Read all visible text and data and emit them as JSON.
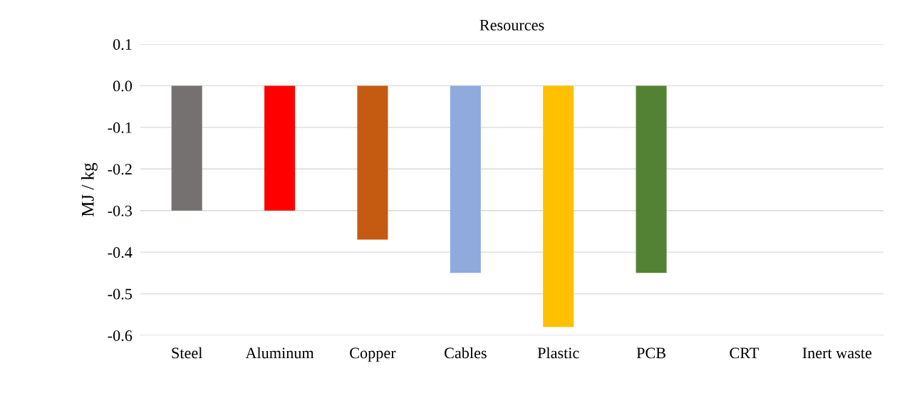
{
  "chart_data": {
    "type": "bar",
    "title": "Resources",
    "ylabel": "MJ / kg",
    "categories": [
      "Steel",
      "Aluminum",
      "Copper",
      "Cables",
      "Plastic",
      "PCB",
      "CRT",
      "Inert waste"
    ],
    "values": [
      -0.3,
      -0.3,
      -0.37,
      -0.45,
      -0.58,
      -0.45,
      0,
      0
    ],
    "colors": [
      "#767171",
      "#ff0000",
      "#c55a11",
      "#8faadc",
      "#ffc000",
      "#548235",
      "#a5a5a5",
      "#4472c4"
    ],
    "ylim": [
      -0.6,
      0.1
    ],
    "yticks": [
      {
        "value": -0.6,
        "label": "-0.6"
      },
      {
        "value": -0.5,
        "label": "-0.5"
      },
      {
        "value": -0.4,
        "label": "-0.4"
      },
      {
        "value": -0.3,
        "label": "-0.3"
      },
      {
        "value": -0.2,
        "label": "-0.2"
      },
      {
        "value": -0.1,
        "label": "-0.1"
      },
      {
        "value": 0,
        "label": "0.0"
      },
      {
        "value": 0.1,
        "label": "0.1"
      }
    ],
    "grid": "y",
    "legend": false
  }
}
